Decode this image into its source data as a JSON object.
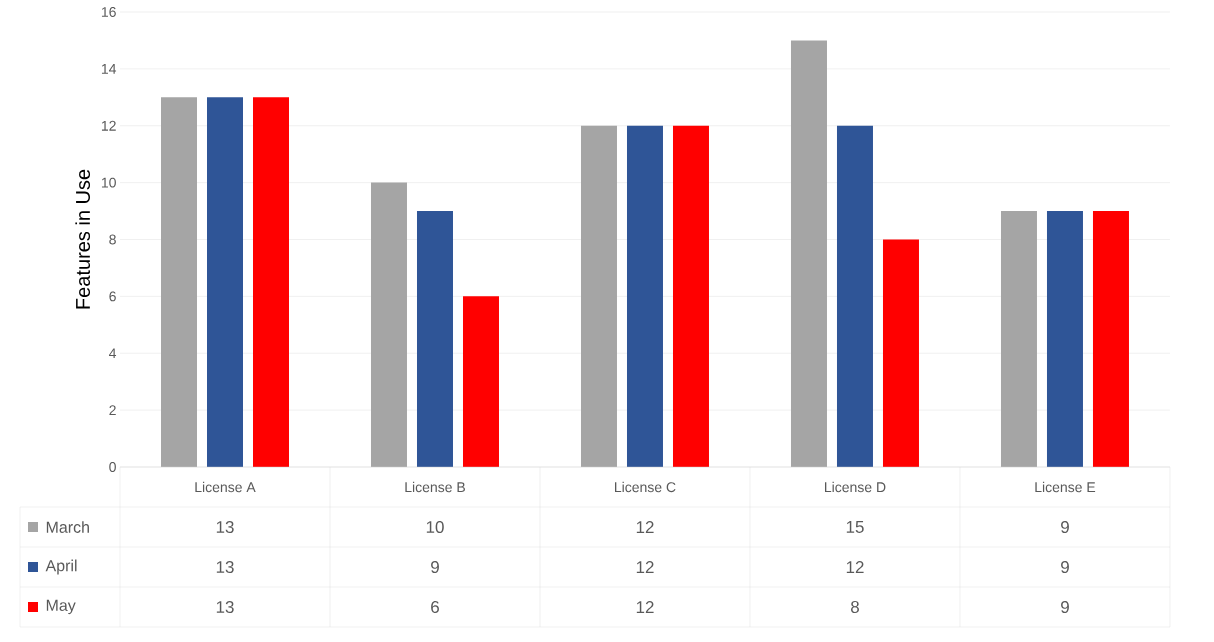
{
  "chart_data": {
    "type": "bar",
    "ylabel": "Features in Use",
    "categories": [
      "License A",
      "License B",
      "License C",
      "License D",
      "License E"
    ],
    "series": [
      {
        "name": "March",
        "color": "#a5a5a5",
        "values": [
          13,
          10,
          12,
          15,
          9
        ]
      },
      {
        "name": "April",
        "color": "#2f5597",
        "values": [
          13,
          9,
          12,
          12,
          9
        ]
      },
      {
        "name": "May",
        "color": "#ff0000",
        "values": [
          13,
          6,
          12,
          8,
          9
        ]
      }
    ],
    "ylim": [
      0,
      16
    ],
    "yticks": [
      0,
      2,
      4,
      6,
      8,
      10,
      12,
      14,
      16
    ],
    "grid": "y",
    "data_labels": true,
    "legend": "bottom"
  }
}
